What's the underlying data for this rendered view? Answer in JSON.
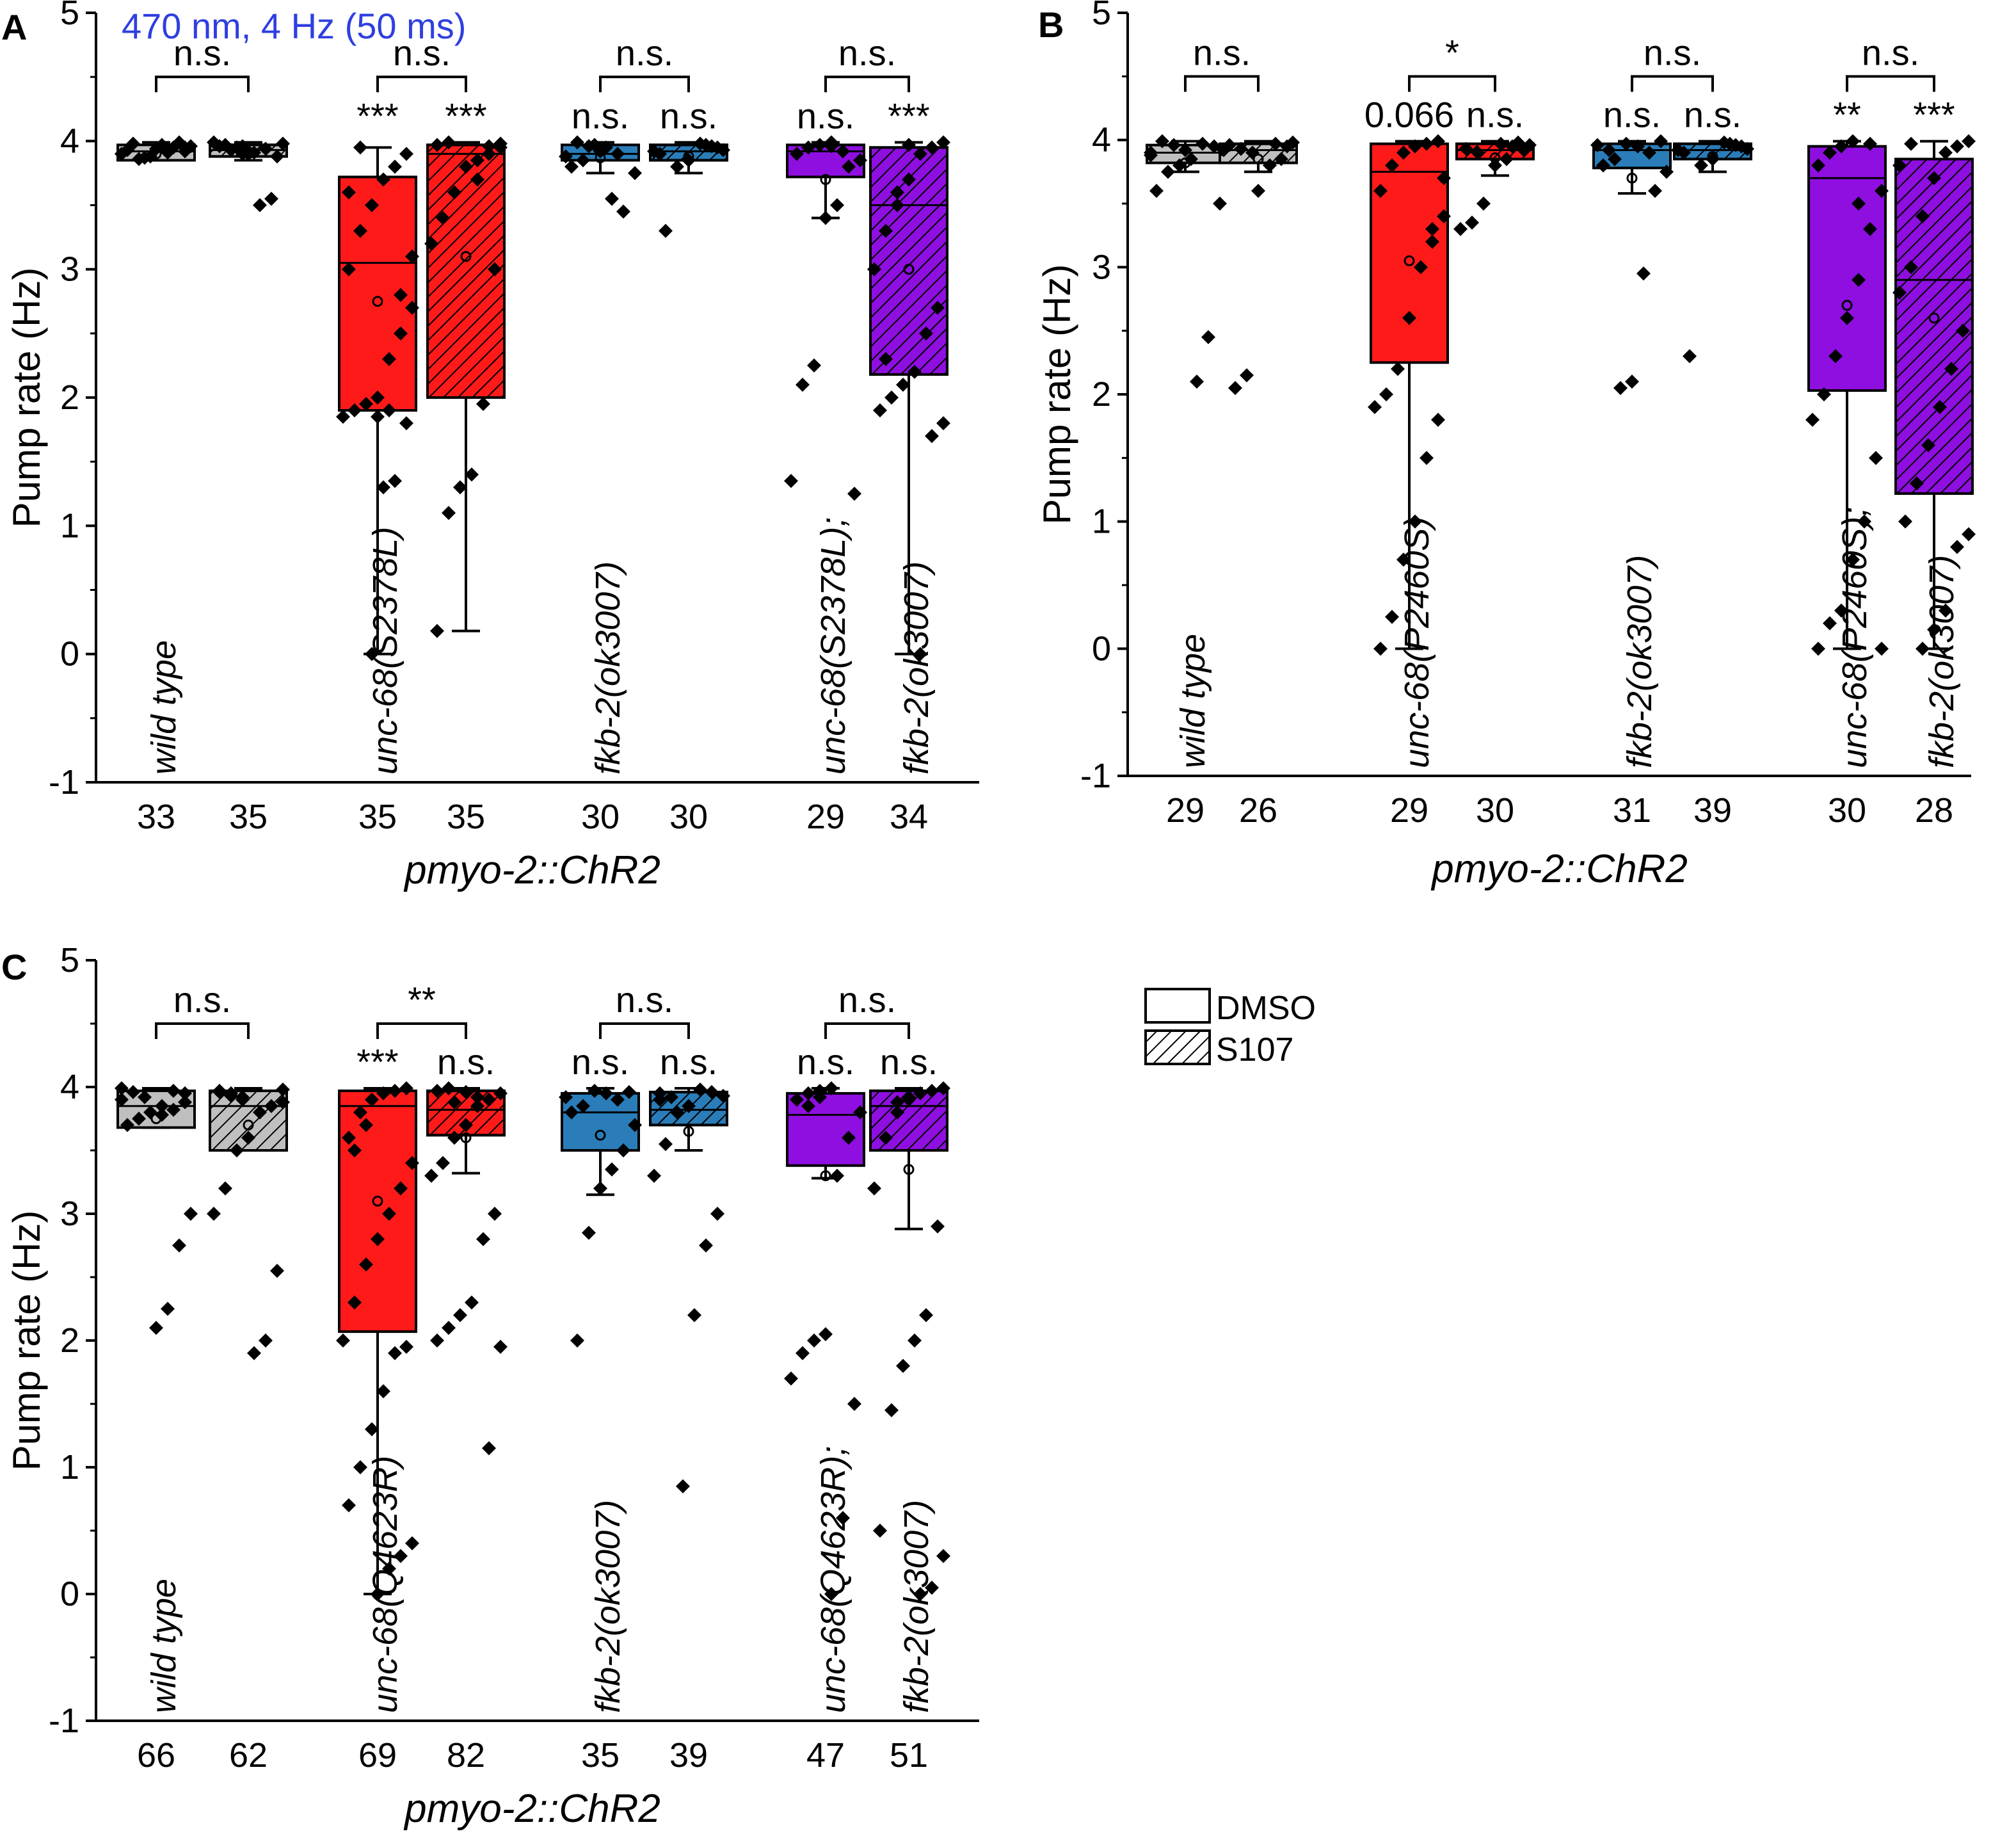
{
  "stimulus_label": "470 nm, 4 Hz (50 ms)",
  "colors": {
    "blue_text": "#2f3fe0",
    "red": "#ff1a1a",
    "blue": "#2a7db8",
    "purple": "#8e0fe0",
    "wild_type": "#bfbfbf"
  },
  "legend": {
    "dmso": "DMSO",
    "s107": "S107"
  },
  "chart_data": [
    {
      "panel": "A",
      "type": "box",
      "ylabel": "Pump rate (Hz)",
      "xlabel": "pmyo-2::ChR2",
      "ylim": [
        -1,
        5
      ],
      "yticks": [
        "-1",
        "0",
        "1",
        "2",
        "3",
        "4",
        "5"
      ],
      "groups": [
        {
          "genotype": [
            "wild type"
          ],
          "color": "wild_type",
          "boxes": [
            {
              "treatment": "DMSO",
              "n": "33",
              "q1": 3.85,
              "median": 3.92,
              "q3": 3.97,
              "wlo": 3.85,
              "whi": 3.99,
              "mean": 3.9,
              "sig": "",
              "pts": [
                3.9,
                3.92,
                3.95,
                3.97,
                3.88,
                3.86,
                3.93,
                3.96,
                3.99,
                3.91,
                3.94,
                3.87,
                3.98,
                3.9,
                3.95
              ]
            },
            {
              "treatment": "S107",
              "n": "35",
              "q1": 3.88,
              "median": 3.93,
              "q3": 3.97,
              "wlo": 3.85,
              "whi": 3.99,
              "mean": 3.9,
              "sig": "",
              "pts": [
                3.9,
                3.93,
                3.96,
                3.98,
                3.55,
                3.5,
                3.92,
                3.95,
                3.97,
                3.99,
                3.88,
                3.94,
                3.91,
                3.96
              ]
            }
          ],
          "bracket": "n.s."
        },
        {
          "genotype": [
            "unc-68(S2378L)"
          ],
          "color": "red",
          "boxes": [
            {
              "treatment": "DMSO",
              "n": "35",
              "q1": 1.9,
              "median": 3.05,
              "q3": 3.72,
              "wlo": 0.0,
              "whi": 3.95,
              "mean": 2.75,
              "sig": "***",
              "pts": [
                3.9,
                3.8,
                3.7,
                3.5,
                3.3,
                3.0,
                2.7,
                2.5,
                2.3,
                2.0,
                1.95,
                1.9,
                1.85,
                1.8,
                1.35,
                1.3,
                0.0,
                3.95,
                3.6,
                3.1,
                2.8,
                1.9,
                1.85
              ]
            },
            {
              "treatment": "S107",
              "n": "35",
              "q1": 2.0,
              "median": 3.9,
              "q3": 3.97,
              "wlo": 0.18,
              "whi": 3.99,
              "mean": 3.1,
              "sig": "***",
              "pts": [
                3.99,
                3.97,
                3.95,
                3.9,
                3.85,
                3.8,
                3.6,
                3.4,
                3.2,
                3.0,
                1.95,
                1.4,
                1.3,
                1.1,
                0.18,
                3.98,
                3.96,
                3.7
              ]
            }
          ],
          "bracket": "n.s."
        },
        {
          "genotype": [
            "fkb-2(ok3007)"
          ],
          "color": "blue",
          "boxes": [
            {
              "treatment": "DMSO",
              "n": "30",
              "q1": 3.85,
              "median": 3.9,
              "q3": 3.97,
              "wlo": 3.75,
              "whi": 3.99,
              "mean": 3.87,
              "sig": "n.s.",
              "pts": [
                3.9,
                3.95,
                3.97,
                3.85,
                3.8,
                3.75,
                3.45,
                3.55,
                3.92,
                3.96,
                3.99,
                3.88
              ]
            },
            {
              "treatment": "S107",
              "n": "30",
              "q1": 3.85,
              "median": 3.92,
              "q3": 3.97,
              "wlo": 3.75,
              "whi": 3.99,
              "mean": 3.88,
              "sig": "n.s.",
              "pts": [
                3.9,
                3.93,
                3.96,
                3.98,
                3.85,
                3.8,
                3.3,
                3.92,
                3.95,
                3.97
              ]
            }
          ],
          "bracket": "n.s."
        },
        {
          "genotype": [
            "unc-68(S2378L);",
            "fkb-2(ok3007)"
          ],
          "color": "purple",
          "boxes": [
            {
              "treatment": "DMSO",
              "n": "29",
              "q1": 3.72,
              "median": 3.92,
              "q3": 3.97,
              "wlo": 3.4,
              "whi": 3.99,
              "mean": 3.7,
              "sig": "n.s.",
              "pts": [
                3.99,
                3.97,
                3.95,
                3.9,
                3.85,
                3.8,
                3.5,
                3.4,
                2.25,
                2.1,
                1.35,
                1.25,
                3.92,
                3.96
              ]
            },
            {
              "treatment": "S107",
              "n": "34",
              "q1": 2.18,
              "median": 3.5,
              "q3": 3.95,
              "wlo": 0.0,
              "whi": 3.99,
              "mean": 3.0,
              "sig": "***",
              "pts": [
                3.99,
                3.95,
                3.9,
                3.7,
                3.5,
                3.3,
                3.0,
                2.7,
                2.5,
                2.2,
                2.1,
                2.0,
                1.9,
                1.8,
                1.7,
                0.0,
                3.97,
                3.6,
                2.3
              ]
            }
          ],
          "bracket": "n.s."
        }
      ]
    },
    {
      "panel": "B",
      "type": "box",
      "ylabel": "Pump rate (Hz)",
      "xlabel": "pmyo-2::ChR2",
      "ylim": [
        -1,
        5
      ],
      "yticks": [
        "-1",
        "0",
        "1",
        "2",
        "3",
        "4",
        "5"
      ],
      "groups": [
        {
          "genotype": [
            "wild type"
          ],
          "color": "wild_type",
          "boxes": [
            {
              "treatment": "DMSO",
              "n": "29",
              "q1": 3.82,
              "median": 3.9,
              "q3": 3.96,
              "wlo": 3.75,
              "whi": 3.99,
              "mean": 3.82,
              "sig": "",
              "pts": [
                3.9,
                3.95,
                3.97,
                3.85,
                3.8,
                3.75,
                3.6,
                3.5,
                2.45,
                2.1,
                3.92,
                3.96,
                3.99,
                3.88
              ]
            },
            {
              "treatment": "S107",
              "n": "26",
              "q1": 3.82,
              "median": 3.92,
              "q3": 3.97,
              "wlo": 3.75,
              "whi": 3.99,
              "mean": 3.85,
              "sig": "",
              "pts": [
                3.9,
                3.93,
                3.96,
                3.98,
                3.85,
                3.8,
                3.6,
                2.15,
                2.05,
                3.92,
                3.95,
                3.97
              ]
            }
          ],
          "bracket": "n.s."
        },
        {
          "genotype": [
            "unc-68(P2460S)"
          ],
          "color": "red",
          "boxes": [
            {
              "treatment": "DMSO",
              "n": "29",
              "q1": 2.25,
              "median": 3.75,
              "q3": 3.97,
              "wlo": 0.0,
              "whi": 3.99,
              "mean": 3.05,
              "sig": "0.066",
              "pts": [
                3.99,
                3.97,
                3.95,
                3.9,
                3.8,
                3.6,
                3.4,
                3.2,
                3.0,
                2.6,
                2.2,
                2.0,
                1.9,
                1.8,
                1.5,
                1.0,
                0.7,
                0.25,
                0.0,
                3.7,
                3.3
              ]
            },
            {
              "treatment": "S107",
              "n": "30",
              "q1": 3.85,
              "median": 3.92,
              "q3": 3.97,
              "wlo": 3.72,
              "whi": 3.99,
              "mean": 3.86,
              "sig": "n.s.",
              "pts": [
                3.9,
                3.93,
                3.96,
                3.98,
                3.85,
                3.8,
                3.5,
                3.35,
                3.3,
                3.92,
                3.95,
                3.97
              ]
            }
          ],
          "bracket": "*"
        },
        {
          "genotype": [
            "fkb-2(ok3007)"
          ],
          "color": "blue",
          "boxes": [
            {
              "treatment": "DMSO",
              "n": "31",
              "q1": 3.78,
              "median": 3.92,
              "q3": 3.97,
              "wlo": 3.58,
              "whi": 3.99,
              "mean": 3.7,
              "sig": "n.s.",
              "pts": [
                3.9,
                3.95,
                3.97,
                3.85,
                3.8,
                3.75,
                3.6,
                2.95,
                2.1,
                2.05,
                3.92,
                3.96,
                3.99
              ]
            },
            {
              "treatment": "S107",
              "n": "39",
              "q1": 3.85,
              "median": 3.92,
              "q3": 3.97,
              "wlo": 3.75,
              "whi": 3.99,
              "mean": 3.87,
              "sig": "n.s.",
              "pts": [
                3.9,
                3.93,
                3.96,
                3.98,
                3.85,
                3.8,
                2.3,
                3.92,
                3.95,
                3.97
              ]
            }
          ],
          "bracket": "n.s."
        },
        {
          "genotype": [
            "unc-68(P2460S);",
            "fkb-2(ok3007)"
          ],
          "color": "purple",
          "boxes": [
            {
              "treatment": "DMSO",
              "n": "30",
              "q1": 2.03,
              "median": 3.7,
              "q3": 3.95,
              "wlo": 0.0,
              "whi": 3.99,
              "mean": 2.7,
              "sig": "**",
              "pts": [
                3.99,
                3.95,
                3.9,
                3.8,
                3.6,
                3.3,
                2.9,
                2.6,
                2.3,
                2.0,
                1.8,
                1.5,
                1.0,
                0.7,
                0.3,
                0.2,
                0.0,
                0.0,
                3.97,
                3.5
              ]
            },
            {
              "treatment": "S107",
              "n": "28",
              "q1": 1.22,
              "median": 2.9,
              "q3": 3.85,
              "wlo": 0.0,
              "whi": 3.99,
              "mean": 2.6,
              "sig": "***",
              "pts": [
                3.99,
                3.95,
                3.9,
                3.7,
                3.4,
                3.0,
                2.8,
                2.5,
                2.2,
                1.9,
                1.6,
                1.3,
                1.0,
                0.9,
                0.8,
                0.3,
                0.15,
                0.0,
                3.97,
                3.8
              ]
            }
          ],
          "bracket": "n.s."
        }
      ]
    },
    {
      "panel": "C",
      "type": "box",
      "ylabel": "Pump rate (Hz)",
      "xlabel": "pmyo-2::ChR2",
      "ylim": [
        -1,
        5
      ],
      "yticks": [
        "-1",
        "0",
        "1",
        "2",
        "3",
        "4",
        "5"
      ],
      "groups": [
        {
          "genotype": [
            "wild type"
          ],
          "color": "wild_type",
          "boxes": [
            {
              "treatment": "DMSO",
              "n": "66",
              "q1": 3.68,
              "median": 3.85,
              "q3": 3.97,
              "wlo": 3.68,
              "whi": 3.99,
              "mean": 3.75,
              "sig": "",
              "pts": [
                3.9,
                3.95,
                3.97,
                3.85,
                3.8,
                3.75,
                3.7,
                3.0,
                2.75,
                2.25,
                2.1,
                3.92,
                3.96,
                3.99,
                3.88,
                3.82,
                3.78
              ]
            },
            {
              "treatment": "S107",
              "n": "62",
              "q1": 3.5,
              "median": 3.85,
              "q3": 3.97,
              "wlo": 3.5,
              "whi": 3.99,
              "mean": 3.7,
              "sig": "",
              "pts": [
                3.9,
                3.93,
                3.96,
                3.98,
                3.85,
                3.8,
                3.6,
                3.5,
                3.2,
                3.0,
                2.55,
                2.0,
                1.9,
                3.92,
                3.95,
                3.97,
                3.88
              ]
            }
          ],
          "bracket": "n.s."
        },
        {
          "genotype": [
            "unc-68(Q4623R)"
          ],
          "color": "red",
          "boxes": [
            {
              "treatment": "DMSO",
              "n": "69",
              "q1": 2.07,
              "median": 3.85,
              "q3": 3.97,
              "wlo": 0.0,
              "whi": 3.99,
              "mean": 3.1,
              "sig": "***",
              "pts": [
                3.99,
                3.97,
                3.95,
                3.9,
                3.8,
                3.6,
                3.4,
                3.2,
                3.0,
                2.8,
                2.6,
                2.3,
                2.0,
                1.95,
                1.9,
                1.6,
                1.3,
                1.0,
                0.7,
                0.4,
                0.3,
                0.2,
                0.0,
                3.7,
                3.5
              ]
            },
            {
              "treatment": "S107",
              "n": "82",
              "q1": 3.62,
              "median": 3.82,
              "q3": 3.97,
              "wlo": 3.32,
              "whi": 3.99,
              "mean": 3.6,
              "sig": "n.s.",
              "pts": [
                3.99,
                3.97,
                3.95,
                3.9,
                3.85,
                3.7,
                3.6,
                3.4,
                3.3,
                3.0,
                2.8,
                2.3,
                2.2,
                2.1,
                2.0,
                1.95,
                1.15,
                3.92,
                3.96,
                3.88
              ]
            }
          ],
          "bracket": "**"
        },
        {
          "genotype": [
            "fkb-2(ok3007)"
          ],
          "color": "blue",
          "boxes": [
            {
              "treatment": "DMSO",
              "n": "35",
              "q1": 3.5,
              "median": 3.8,
              "q3": 3.95,
              "wlo": 3.15,
              "whi": 3.99,
              "mean": 3.62,
              "sig": "n.s.",
              "pts": [
                3.9,
                3.95,
                3.97,
                3.85,
                3.8,
                3.7,
                3.5,
                3.35,
                3.2,
                2.85,
                2.0,
                3.92,
                3.96
              ]
            },
            {
              "treatment": "S107",
              "n": "39",
              "q1": 3.7,
              "median": 3.82,
              "q3": 3.96,
              "wlo": 3.5,
              "whi": 3.99,
              "mean": 3.65,
              "sig": "n.s.",
              "pts": [
                3.9,
                3.93,
                3.96,
                3.98,
                3.85,
                3.8,
                3.55,
                3.3,
                3.0,
                2.75,
                2.2,
                0.85,
                3.92,
                3.95
              ]
            }
          ],
          "bracket": "n.s."
        },
        {
          "genotype": [
            "unc-68(Q4623R);",
            "fkb-2(ok3007)"
          ],
          "color": "purple",
          "boxes": [
            {
              "treatment": "DMSO",
              "n": "47",
              "q1": 3.38,
              "median": 3.78,
              "q3": 3.95,
              "wlo": 3.28,
              "whi": 3.99,
              "mean": 3.3,
              "sig": "n.s.",
              "pts": [
                3.99,
                3.97,
                3.95,
                3.9,
                3.8,
                3.6,
                3.3,
                2.05,
                2.0,
                1.9,
                1.7,
                1.5,
                0.6,
                0.0,
                3.92,
                3.85
              ]
            },
            {
              "treatment": "S107",
              "n": "51",
              "q1": 3.5,
              "median": 3.85,
              "q3": 3.97,
              "wlo": 2.88,
              "whi": 3.99,
              "mean": 3.35,
              "sig": "n.s.",
              "pts": [
                3.99,
                3.97,
                3.95,
                3.9,
                3.8,
                3.6,
                3.2,
                2.9,
                2.2,
                2.0,
                1.8,
                1.45,
                0.5,
                0.3,
                0.05,
                0.0,
                3.92,
                3.88
              ]
            }
          ],
          "bracket": "n.s."
        }
      ]
    }
  ]
}
